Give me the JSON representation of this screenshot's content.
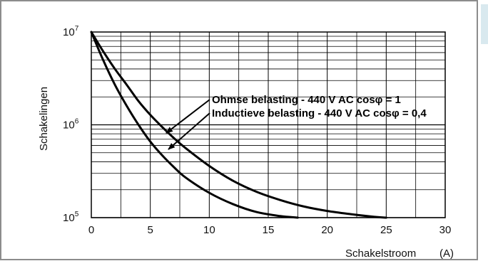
{
  "chart_data": {
    "type": "line",
    "xlabel": "Schakelstroom",
    "xunit": "(A)",
    "ylabel": "Schakelingen",
    "x_scale": "linear",
    "y_scale": "log",
    "xlim": [
      0,
      30
    ],
    "ylim": [
      100000,
      10000000
    ],
    "grid": true,
    "x_ticks": [
      "0",
      "5",
      "10",
      "15",
      "20",
      "25",
      "30"
    ],
    "y_ticks": [
      {
        "base": "10",
        "exp": "7"
      },
      {
        "base": "10",
        "exp": "6"
      },
      {
        "base": "10",
        "exp": "5"
      }
    ],
    "series": [
      {
        "name": "Ohmse belasting - 440 V AC cosφ = 1",
        "x": [
          0,
          1,
          2,
          3,
          4,
          5,
          6,
          7,
          8,
          10,
          12,
          14,
          16,
          18,
          20,
          22,
          24,
          25
        ],
        "y": [
          10000000,
          6200000,
          4000000,
          2700000,
          1800000,
          1280000,
          950000,
          720000,
          560000,
          360000,
          250000,
          190000,
          155000,
          132000,
          118000,
          109000,
          102000,
          100000
        ]
      },
      {
        "name": "Inductieve belasting - 440 V AC cosφ = 0,4",
        "x": [
          0,
          1,
          2,
          3,
          4,
          5,
          6,
          7,
          8,
          10,
          12,
          14,
          16,
          17.5
        ],
        "y": [
          10000000,
          5000000,
          2700000,
          1600000,
          1000000,
          660000,
          470000,
          350000,
          270000,
          185000,
          140000,
          115000,
          104000,
          100000
        ]
      }
    ],
    "annotations": [
      {
        "text": "Ohmse belasting - 440 V AC cosφ = 1",
        "points_to_series": 0
      },
      {
        "text": "Inductieve belasting - 440 V AC cosφ = 0,4",
        "points_to_series": 1
      }
    ]
  },
  "colors": {
    "frame": "#8c8c8c",
    "grid": "#000000",
    "curve": "#000000",
    "tab": "#d9e9ef"
  }
}
